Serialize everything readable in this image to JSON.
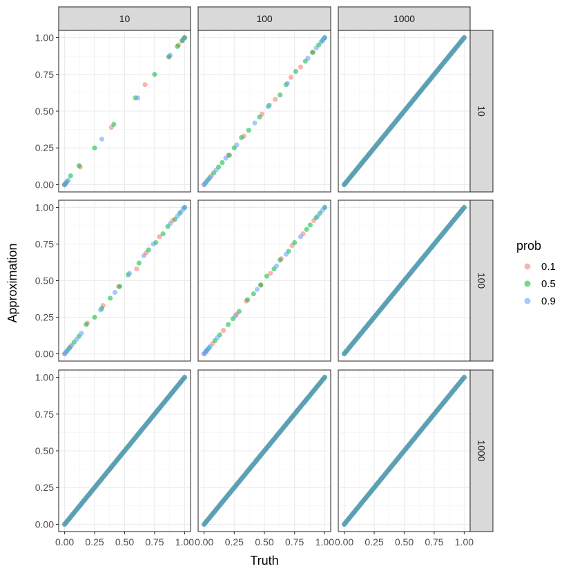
{
  "chart_data": {
    "type": "scatter",
    "title": "",
    "xlabel": "Truth",
    "ylabel": "Approximation",
    "xlim": [
      0,
      1
    ],
    "ylim": [
      0,
      1
    ],
    "xticks": [
      "0.00",
      "0.25",
      "0.50",
      "0.75",
      "1.00"
    ],
    "yticks": [
      "0.00",
      "0.25",
      "0.50",
      "0.75",
      "1.00"
    ],
    "grid": true,
    "facet_cols": [
      "10",
      "100",
      "1000"
    ],
    "facet_rows": [
      "10",
      "100",
      "1000"
    ],
    "legend": {
      "title": "prob",
      "placement": "right",
      "entries": [
        {
          "label": "0.1",
          "color": "#F8766D"
        },
        {
          "label": "0.5",
          "color": "#00BA38"
        },
        {
          "label": "0.9",
          "color": "#619CFF"
        }
      ]
    },
    "panels": [
      {
        "col": "10",
        "row": "10",
        "points": {
          "0.1": [
            [
              0.0,
              0.0
            ],
            [
              0.01,
              0.01
            ],
            [
              0.13,
              0.12
            ],
            [
              0.39,
              0.39
            ],
            [
              0.67,
              0.68
            ],
            [
              0.87,
              0.87
            ],
            [
              0.95,
              0.95
            ],
            [
              0.98,
              0.98
            ],
            [
              1.0,
              1.0
            ]
          ],
          "0.5": [
            [
              0.0,
              0.0
            ],
            [
              0.02,
              0.02
            ],
            [
              0.05,
              0.06
            ],
            [
              0.12,
              0.13
            ],
            [
              0.25,
              0.25
            ],
            [
              0.41,
              0.41
            ],
            [
              0.59,
              0.59
            ],
            [
              0.75,
              0.75
            ],
            [
              0.87,
              0.87
            ],
            [
              0.94,
              0.94
            ],
            [
              0.98,
              0.98
            ],
            [
              1.0,
              1.0
            ]
          ],
          "0.9": [
            [
              0.0,
              0.0
            ],
            [
              0.01,
              0.01
            ],
            [
              0.03,
              0.03
            ],
            [
              0.31,
              0.31
            ],
            [
              0.61,
              0.59
            ],
            [
              0.88,
              0.88
            ],
            [
              0.99,
              0.99
            ]
          ]
        }
      },
      {
        "col": "10",
        "row": "100",
        "points": {
          "0.1": [
            [
              0.0,
              0.0
            ],
            [
              0.05,
              0.05
            ],
            [
              0.19,
              0.21
            ],
            [
              0.32,
              0.33
            ],
            [
              0.45,
              0.46
            ],
            [
              0.6,
              0.58
            ],
            [
              0.68,
              0.69
            ],
            [
              0.79,
              0.8
            ],
            [
              0.9,
              0.91
            ]
          ],
          "0.5": [
            [
              0.02,
              0.02
            ],
            [
              0.04,
              0.04
            ],
            [
              0.08,
              0.08
            ],
            [
              0.12,
              0.12
            ],
            [
              0.18,
              0.2
            ],
            [
              0.25,
              0.25
            ],
            [
              0.31,
              0.31
            ],
            [
              0.38,
              0.38
            ],
            [
              0.46,
              0.46
            ],
            [
              0.53,
              0.54
            ],
            [
              0.62,
              0.62
            ],
            [
              0.7,
              0.71
            ],
            [
              0.76,
              0.76
            ],
            [
              0.82,
              0.82
            ],
            [
              0.86,
              0.87
            ],
            [
              0.92,
              0.92
            ],
            [
              0.96,
              0.96
            ],
            [
              1.0,
              1.0
            ]
          ],
          "0.9": [
            [
              0.0,
              0.0
            ],
            [
              0.01,
              0.01
            ],
            [
              0.03,
              0.03
            ],
            [
              0.06,
              0.06
            ],
            [
              0.1,
              0.1
            ],
            [
              0.14,
              0.14
            ],
            [
              0.3,
              0.3
            ],
            [
              0.42,
              0.42
            ],
            [
              0.54,
              0.55
            ],
            [
              0.66,
              0.67
            ],
            [
              0.74,
              0.75
            ],
            [
              0.88,
              0.89
            ],
            [
              0.94,
              0.94
            ],
            [
              0.97,
              0.97
            ],
            [
              0.99,
              0.99
            ],
            [
              1.0,
              1.0
            ]
          ]
        }
      },
      {
        "col": "10",
        "row": "1000",
        "dense": true
      },
      {
        "col": "100",
        "row": "10",
        "points": {
          "0.1": [
            [
              0.0,
              0.0
            ],
            [
              0.06,
              0.06
            ],
            [
              0.2,
              0.2
            ],
            [
              0.33,
              0.33
            ],
            [
              0.48,
              0.48
            ],
            [
              0.59,
              0.58
            ],
            [
              0.72,
              0.73
            ],
            [
              0.8,
              0.8
            ],
            [
              0.9,
              0.9
            ]
          ],
          "0.5": [
            [
              0.02,
              0.02
            ],
            [
              0.04,
              0.04
            ],
            [
              0.08,
              0.08
            ],
            [
              0.12,
              0.12
            ],
            [
              0.15,
              0.15
            ],
            [
              0.21,
              0.2
            ],
            [
              0.25,
              0.25
            ],
            [
              0.31,
              0.32
            ],
            [
              0.37,
              0.37
            ],
            [
              0.46,
              0.46
            ],
            [
              0.54,
              0.54
            ],
            [
              0.63,
              0.61
            ],
            [
              0.68,
              0.68
            ],
            [
              0.76,
              0.77
            ],
            [
              0.84,
              0.84
            ],
            [
              0.9,
              0.9
            ],
            [
              0.95,
              0.95
            ],
            [
              0.98,
              0.98
            ],
            [
              1.0,
              1.0
            ]
          ],
          "0.9": [
            [
              0.0,
              0.0
            ],
            [
              0.01,
              0.01
            ],
            [
              0.03,
              0.03
            ],
            [
              0.05,
              0.05
            ],
            [
              0.1,
              0.1
            ],
            [
              0.18,
              0.18
            ],
            [
              0.27,
              0.27
            ],
            [
              0.42,
              0.42
            ],
            [
              0.53,
              0.53
            ],
            [
              0.69,
              0.69
            ],
            [
              0.86,
              0.86
            ],
            [
              0.93,
              0.93
            ],
            [
              0.97,
              0.97
            ],
            [
              0.99,
              0.99
            ],
            [
              1.0,
              1.0
            ]
          ]
        }
      },
      {
        "col": "100",
        "row": "100",
        "points": {
          "0.1": [
            [
              0.0,
              0.0
            ],
            [
              0.07,
              0.07
            ],
            [
              0.16,
              0.16
            ],
            [
              0.27,
              0.27
            ],
            [
              0.35,
              0.36
            ],
            [
              0.47,
              0.47
            ],
            [
              0.55,
              0.55
            ],
            [
              0.64,
              0.65
            ],
            [
              0.73,
              0.74
            ],
            [
              0.82,
              0.82
            ],
            [
              0.91,
              0.91
            ]
          ],
          "0.5": [
            [
              0.02,
              0.02
            ],
            [
              0.04,
              0.04
            ],
            [
              0.09,
              0.09
            ],
            [
              0.13,
              0.13
            ],
            [
              0.2,
              0.2
            ],
            [
              0.24,
              0.24
            ],
            [
              0.29,
              0.29
            ],
            [
              0.36,
              0.37
            ],
            [
              0.41,
              0.41
            ],
            [
              0.47,
              0.47
            ],
            [
              0.52,
              0.53
            ],
            [
              0.58,
              0.58
            ],
            [
              0.63,
              0.64
            ],
            [
              0.7,
              0.7
            ],
            [
              0.75,
              0.76
            ],
            [
              0.85,
              0.85
            ],
            [
              0.88,
              0.88
            ],
            [
              0.93,
              0.93
            ],
            [
              0.96,
              0.96
            ],
            [
              1.0,
              1.0
            ]
          ],
          "0.9": [
            [
              0.0,
              0.0
            ],
            [
              0.01,
              0.01
            ],
            [
              0.02,
              0.02
            ],
            [
              0.03,
              0.03
            ],
            [
              0.05,
              0.05
            ],
            [
              0.11,
              0.11
            ],
            [
              0.26,
              0.26
            ],
            [
              0.44,
              0.44
            ],
            [
              0.6,
              0.6
            ],
            [
              0.68,
              0.68
            ],
            [
              0.8,
              0.8
            ],
            [
              0.94,
              0.94
            ],
            [
              0.98,
              0.98
            ],
            [
              1.0,
              1.0
            ]
          ]
        }
      },
      {
        "col": "100",
        "row": "1000",
        "dense": true
      },
      {
        "col": "1000",
        "row": "10",
        "dense": true
      },
      {
        "col": "1000",
        "row": "100",
        "dense": true
      },
      {
        "col": "1000",
        "row": "1000",
        "dense": true
      }
    ]
  }
}
